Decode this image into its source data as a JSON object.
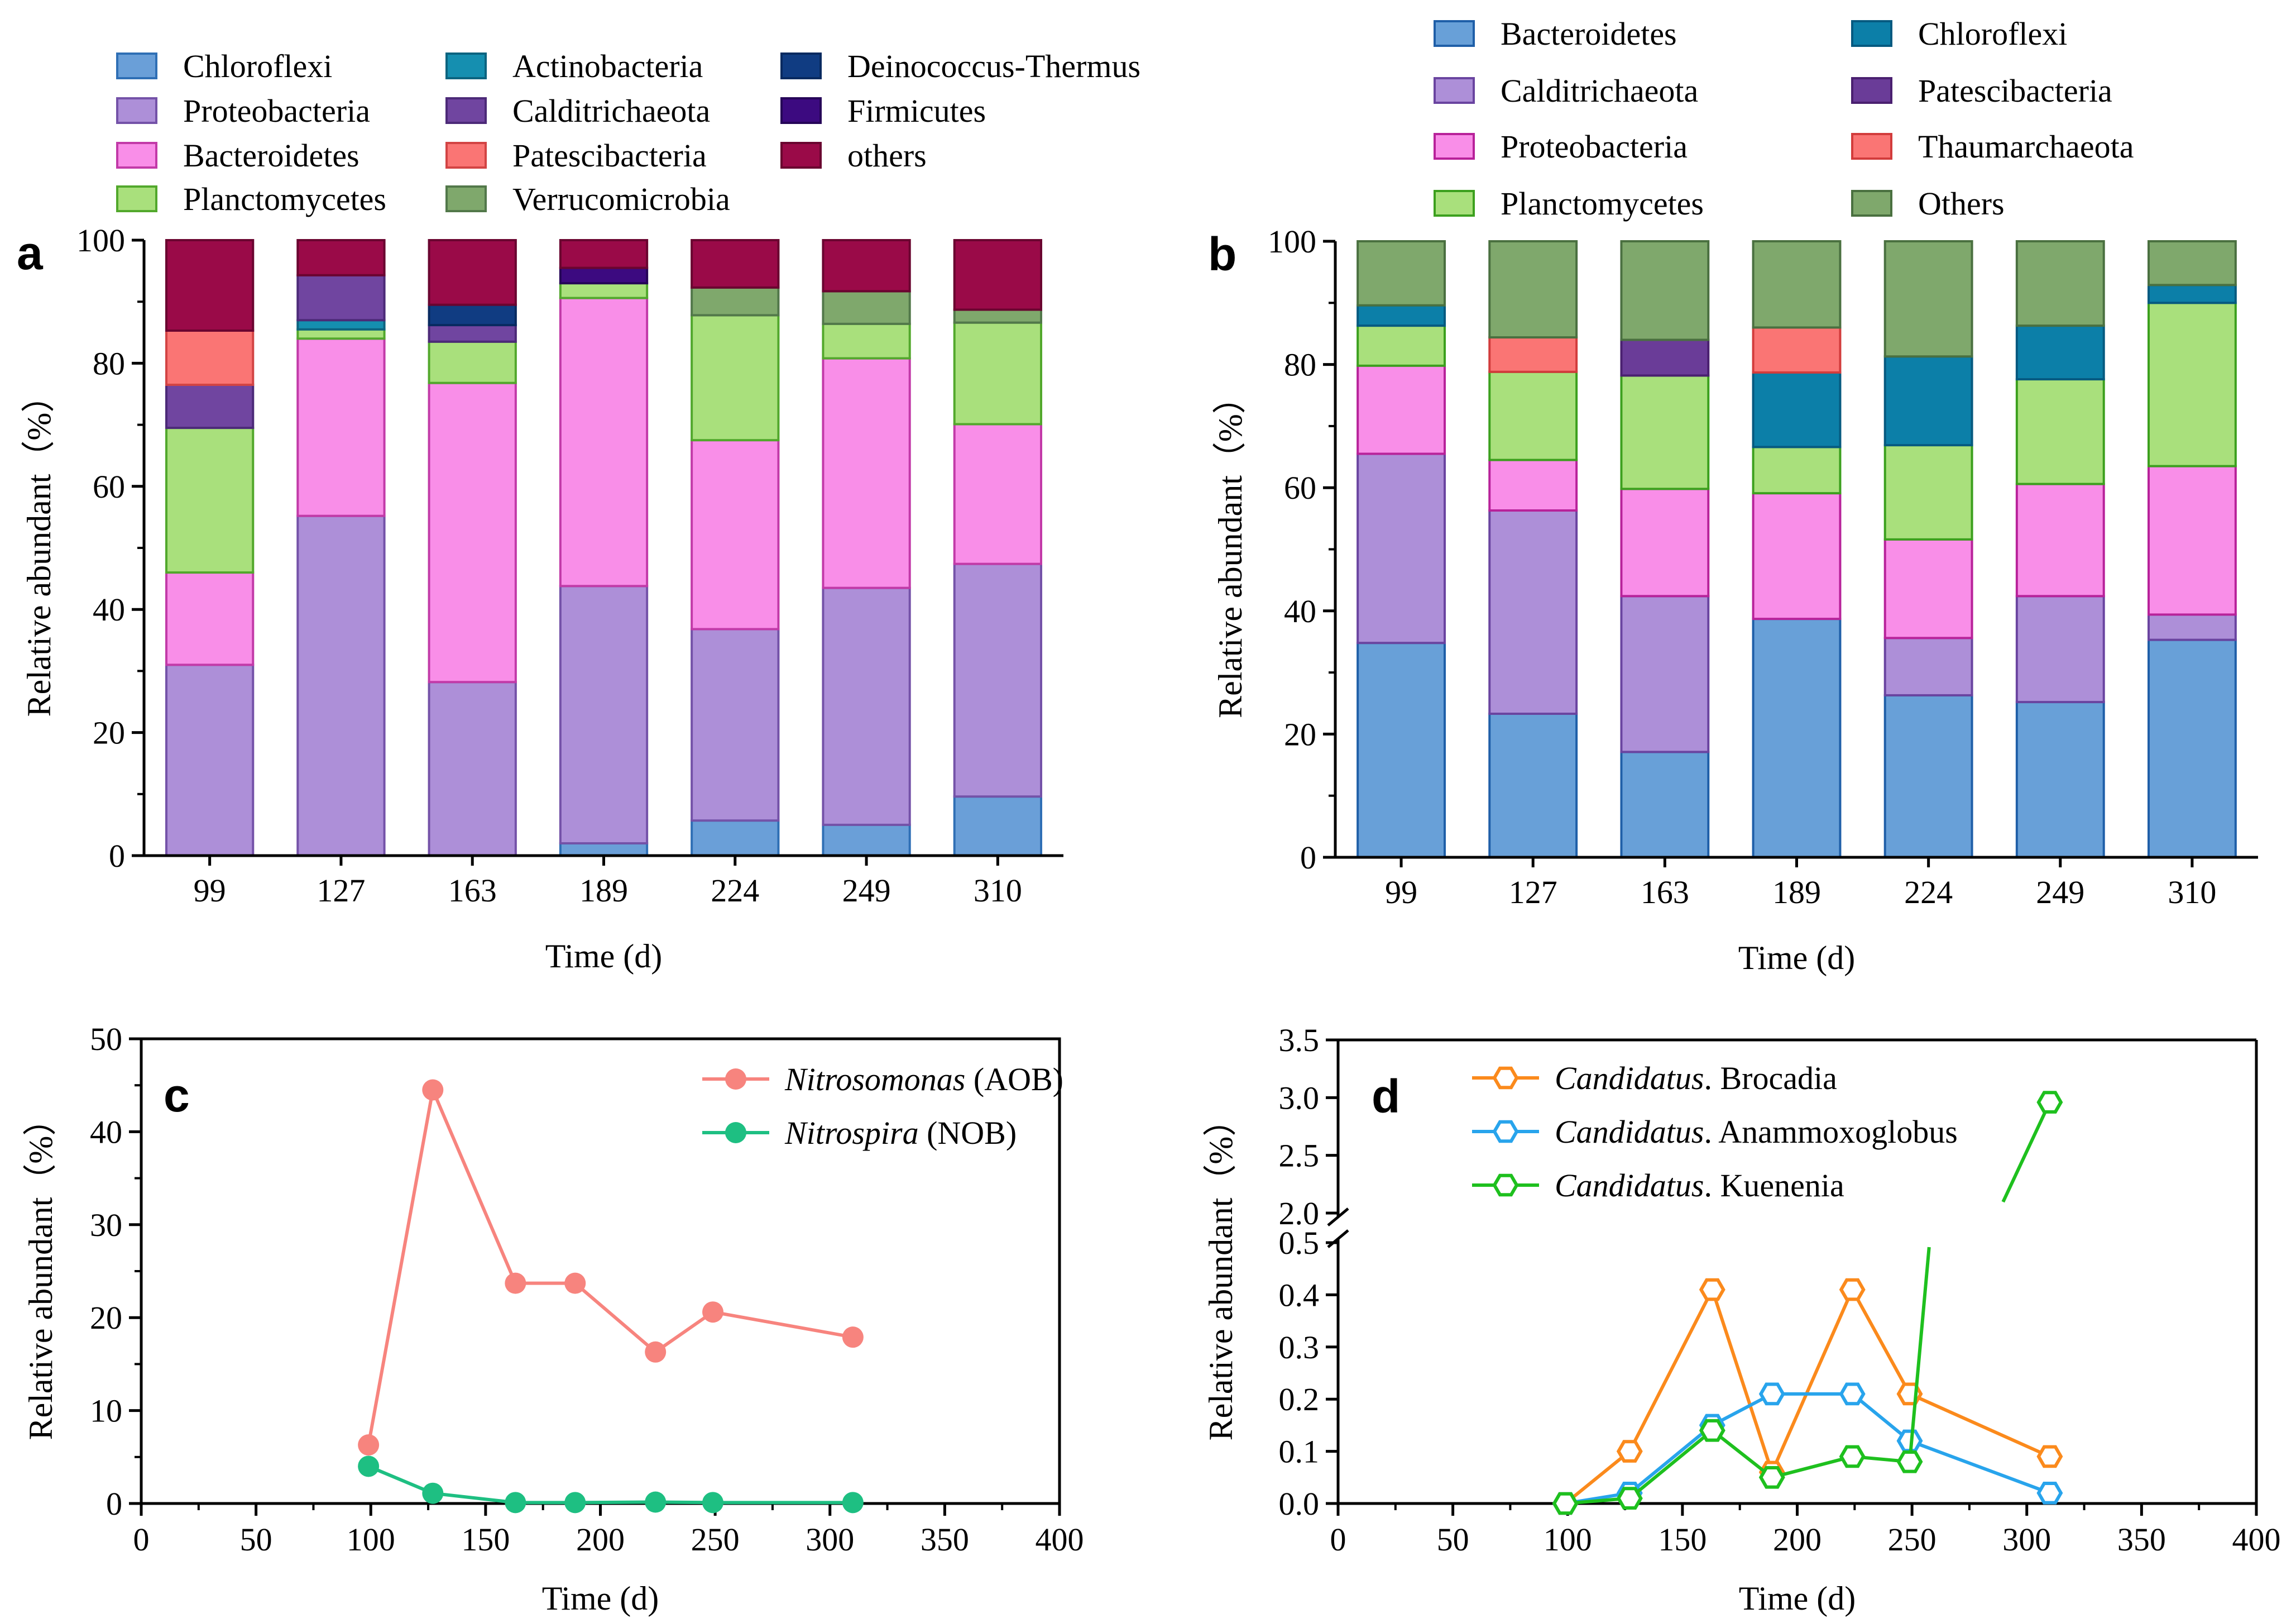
{
  "chart_data": [
    {
      "panel": "a",
      "type": "bar",
      "stacked": true,
      "xlabel": "Time (d)",
      "ylabel": "Relative abundant（%）",
      "ylim": [
        0,
        100
      ],
      "yticks": [
        "0",
        "20",
        "40",
        "60",
        "80",
        "100"
      ],
      "categories": [
        "99",
        "127",
        "163",
        "189",
        "224",
        "249",
        "310"
      ],
      "legend": [
        "Chloroflexi",
        "Proteobacteria",
        "Bacteroidetes",
        "Planctomycetes",
        "Actinobacteria",
        "Calditrichaeota",
        "Patescibacteria",
        "Verrucomicrobia",
        "Deinococcus-Thermus",
        "Firmicutes",
        "others"
      ],
      "series": [
        {
          "name": "Chloroflexi",
          "fill": "#6a9fd8",
          "stroke": "#2f6fb5",
          "values": [
            0,
            0,
            0,
            2,
            5.7,
            5,
            9.6
          ]
        },
        {
          "name": "Proteobacteria",
          "fill": "#ad8fd8",
          "stroke": "#7452a8",
          "values": [
            31,
            55.2,
            28.2,
            41.8,
            31.1,
            38.5,
            37.8
          ]
        },
        {
          "name": "Bacteroidetes",
          "fill": "#f98ee8",
          "stroke": "#c23aa8",
          "values": [
            15,
            28.8,
            48.6,
            46.8,
            30.7,
            37.3,
            22.7
          ]
        },
        {
          "name": "Planctomycetes",
          "fill": "#a9e07c",
          "stroke": "#52a82c",
          "values": [
            23.5,
            1.5,
            6.7,
            2.4,
            20.3,
            5.6,
            16.5
          ]
        },
        {
          "name": "Actinobacteria",
          "fill": "#158fb0",
          "stroke": "#0c6480",
          "values": [
            0,
            1.5,
            0,
            0,
            0,
            0,
            0
          ]
        },
        {
          "name": "Calditrichaeota",
          "fill": "#7045a0",
          "stroke": "#4c2a78",
          "values": [
            7,
            7.3,
            2.7,
            0,
            0,
            0,
            0
          ]
        },
        {
          "name": "Patescibacteria",
          "fill": "#fa7574",
          "stroke": "#d24444",
          "values": [
            8.8,
            0,
            0,
            0,
            0,
            0,
            0
          ]
        },
        {
          "name": "Verrucomicrobia",
          "fill": "#7fa86c",
          "stroke": "#52784a",
          "values": [
            0,
            0,
            0,
            0,
            4.5,
            5.3,
            2.1
          ]
        },
        {
          "name": "Deinococcus-Thermus",
          "fill": "#103c82",
          "stroke": "#082a60",
          "values": [
            0,
            0,
            3.3,
            0,
            0,
            0,
            0
          ]
        },
        {
          "name": "Firmicutes",
          "fill": "#3c0a80",
          "stroke": "#260558",
          "values": [
            0,
            0,
            0,
            2.5,
            0,
            0,
            0
          ]
        },
        {
          "name": "others",
          "fill": "#9a0a48",
          "stroke": "#6a0530",
          "values": [
            14.7,
            5.7,
            10.5,
            4.5,
            7.7,
            8.3,
            11.3
          ]
        }
      ]
    },
    {
      "panel": "b",
      "type": "bar",
      "stacked": true,
      "xlabel": "Time (d)",
      "ylabel": "Relative abundant（%）",
      "ylim": [
        0,
        100
      ],
      "yticks": [
        "0",
        "20",
        "40",
        "60",
        "80",
        "100"
      ],
      "categories": [
        "99",
        "127",
        "163",
        "189",
        "224",
        "249",
        "310"
      ],
      "legend": [
        "Bacteroidetes",
        "Calditrichaeota",
        "Proteobacteria",
        "Planctomycetes",
        "Chloroflexi",
        "Patescibacteria",
        "Thaumarchaeota",
        "Others"
      ],
      "series": [
        {
          "name": "Bacteroidetes",
          "fill": "#68a0d8",
          "stroke": "#1f5fa8",
          "values": [
            34.8,
            23.3,
            17.1,
            38.7,
            26.3,
            25.2,
            35.3
          ]
        },
        {
          "name": "Calditrichaeota",
          "fill": "#ad8fd8",
          "stroke": "#6a44a0",
          "values": [
            30.7,
            33,
            25.3,
            0,
            9.3,
            17.2,
            4.1
          ]
        },
        {
          "name": "Proteobacteria",
          "fill": "#f98ee8",
          "stroke": "#b8229a",
          "values": [
            14.3,
            8.2,
            17.4,
            20.4,
            16,
            18.2,
            24.1
          ]
        },
        {
          "name": "Planctomycetes",
          "fill": "#a9e07c",
          "stroke": "#3ca01e",
          "values": [
            6.5,
            14.3,
            18.4,
            7.5,
            15.3,
            17,
            26.5
          ]
        },
        {
          "name": "Chloroflexi",
          "fill": "#0c7fa8",
          "stroke": "#065a80",
          "values": [
            3.3,
            0,
            0,
            12.1,
            14.4,
            8.7,
            2.9
          ]
        },
        {
          "name": "Patescibacteria",
          "fill": "#6a3c98",
          "stroke": "#4a2070",
          "values": [
            0,
            0,
            5.8,
            0,
            0,
            0,
            0
          ]
        },
        {
          "name": "Thaumarchaeota",
          "fill": "#fa7574",
          "stroke": "#d23c3c",
          "values": [
            0,
            5.6,
            0,
            7.3,
            0,
            0,
            0
          ]
        },
        {
          "name": "Others",
          "fill": "#7fa86c",
          "stroke": "#4a7040",
          "values": [
            10.4,
            15.6,
            16,
            14,
            18.7,
            13.7,
            7.1
          ]
        }
      ]
    },
    {
      "panel": "c",
      "type": "line",
      "xlabel": "Time (d)",
      "ylabel": "Relative abundant（%）",
      "xlim": [
        0,
        400
      ],
      "ylim": [
        0,
        50
      ],
      "xticks": [
        "0",
        "50",
        "100",
        "150",
        "200",
        "250",
        "300",
        "350",
        "400"
      ],
      "yticks": [
        "0",
        "10",
        "20",
        "30",
        "40",
        "50"
      ],
      "x": [
        99,
        127,
        163,
        189,
        224,
        249,
        310
      ],
      "series": [
        {
          "name": "Nitrosomonas",
          "suffix": " (AOB)",
          "color": "#f7847e",
          "values": [
            6.3,
            44.5,
            23.7,
            23.7,
            16.3,
            20.6,
            17.9
          ]
        },
        {
          "name": "Nitrospira",
          "suffix": " (NOB)",
          "color": "#1ebf82",
          "values": [
            4,
            1.1,
            0.1,
            0.1,
            0.15,
            0.1,
            0.1
          ]
        }
      ]
    },
    {
      "panel": "d",
      "type": "line",
      "xlabel": "Time (d)",
      "ylabel": "Relative abundant（%）",
      "xlim": [
        0,
        400
      ],
      "ylim": [
        0,
        3.5
      ],
      "y_axis_break": [
        0.5,
        2.0
      ],
      "xticks": [
        "0",
        "50",
        "100",
        "150",
        "200",
        "250",
        "300",
        "350",
        "400"
      ],
      "yticks_lower": [
        "0.0",
        "0.1",
        "0.2",
        "0.3",
        "0.4",
        "0.5"
      ],
      "yticks_upper": [
        "2.0",
        "2.5",
        "3.0",
        "3.5"
      ],
      "x": [
        99,
        127,
        163,
        189,
        224,
        249,
        310
      ],
      "series": [
        {
          "name": "Candidatus",
          "suffix": ". Brocadia",
          "color": "#fb8a1c",
          "values": [
            0,
            0.1,
            0.41,
            0.06,
            0.41,
            0.21,
            0.09
          ]
        },
        {
          "name": "Candidatus",
          "suffix": ". Anammoxoglobus",
          "color": "#28a4ec",
          "values": [
            0,
            0.02,
            0.15,
            0.21,
            0.21,
            0.12,
            0.02
          ]
        },
        {
          "name": "Candidatus",
          "suffix": ". Kuenenia",
          "color": "#1ec01e",
          "values": [
            0,
            0.01,
            0.14,
            0.05,
            0.09,
            0.08,
            2.96
          ]
        }
      ]
    }
  ]
}
